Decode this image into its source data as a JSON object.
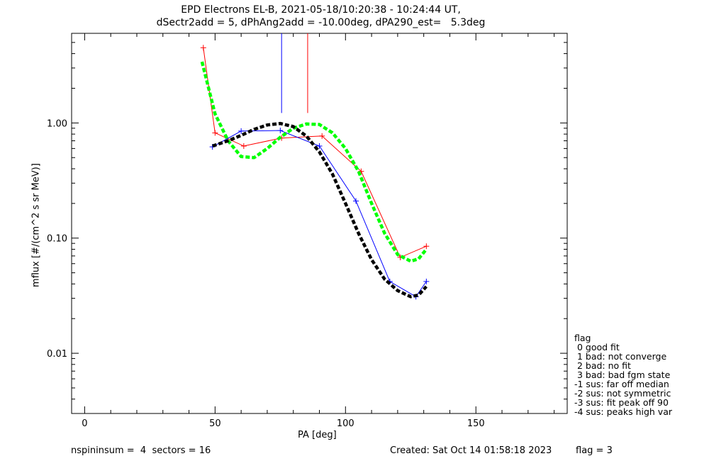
{
  "title": {
    "line1": "EPD Electrons EL-B, 2021-05-18/10:20:38 - 10:24:44 UT,",
    "line2": "dSectr2add = 5, dPhAng2add = -10.00deg, dPA290_est=   5.3deg"
  },
  "footer": {
    "left": "nspininsum =  4  sectors = 16",
    "created": "Created: Sat Oct 14 01:58:18 2023",
    "flag": "flag = 3"
  },
  "legend": {
    "title": "flag",
    "items": [
      " 0 good fit",
      " 1 bad: not converge",
      " 2 bad: no fit",
      " 3 bad: bad fgm state",
      "-1 sus: far off median",
      "-2 sus: not symmetric",
      "-3 sus: fit peak off 90",
      "-4 sus: peaks high var"
    ]
  },
  "chart_data": {
    "type": "line",
    "xlabel": "PA [deg]",
    "ylabel": "mflux [#/(cm^2 s sr MeV)]",
    "xlim": [
      -5,
      185
    ],
    "ylim": [
      0.003,
      6.0
    ],
    "yscale": "log",
    "xticks": [
      0,
      50,
      100,
      150
    ],
    "xtick_labels": [
      "0",
      "50",
      "100",
      "150"
    ],
    "yticks": [
      0.01,
      0.1,
      1.0
    ],
    "ytick_labels": [
      "0.01",
      "0.10",
      "1.00"
    ],
    "colors": {
      "red": "#ff0000",
      "blue": "#0000ff",
      "green": "#00ff00",
      "black": "#000000"
    },
    "series": [
      {
        "color": "#ff0000",
        "style": "line+plus",
        "x": [
          45.5,
          50,
          61,
          75.5,
          91,
          106,
          121,
          131
        ],
        "y": [
          4.5,
          0.82,
          0.63,
          0.74,
          0.77,
          0.38,
          0.068,
          0.085
        ]
      },
      {
        "color": "#0000ff",
        "style": "line+plus",
        "x": [
          49,
          60,
          75,
          90,
          104,
          117,
          127,
          131
        ],
        "y": [
          0.62,
          0.85,
          0.86,
          0.63,
          0.21,
          0.042,
          0.031,
          0.042
        ]
      },
      {
        "color": "#00ff00",
        "style": "dashed-fit",
        "x": [
          45,
          50,
          55,
          60,
          65,
          70,
          75,
          80,
          85,
          90,
          95,
          100,
          105,
          110,
          115,
          120,
          125,
          128,
          131
        ],
        "y": [
          3.4,
          1.2,
          0.7,
          0.51,
          0.5,
          0.6,
          0.75,
          0.9,
          0.98,
          0.97,
          0.82,
          0.6,
          0.38,
          0.2,
          0.11,
          0.072,
          0.063,
          0.066,
          0.08
        ]
      },
      {
        "color": "#000000",
        "style": "dashed-fit",
        "x": [
          49,
          55,
          60,
          65,
          70,
          75,
          80,
          85,
          90,
          95,
          100,
          105,
          110,
          115,
          120,
          125,
          128,
          131
        ],
        "y": [
          0.63,
          0.7,
          0.78,
          0.88,
          0.96,
          0.99,
          0.93,
          0.77,
          0.56,
          0.36,
          0.2,
          0.11,
          0.065,
          0.044,
          0.035,
          0.031,
          0.032,
          0.038
        ]
      }
    ],
    "vlines": [
      {
        "color": "#0000ff",
        "x": 75.5,
        "y_from": 1.22
      },
      {
        "color": "#ff0000",
        "x": 85.5,
        "y_from": 1.22
      }
    ]
  }
}
